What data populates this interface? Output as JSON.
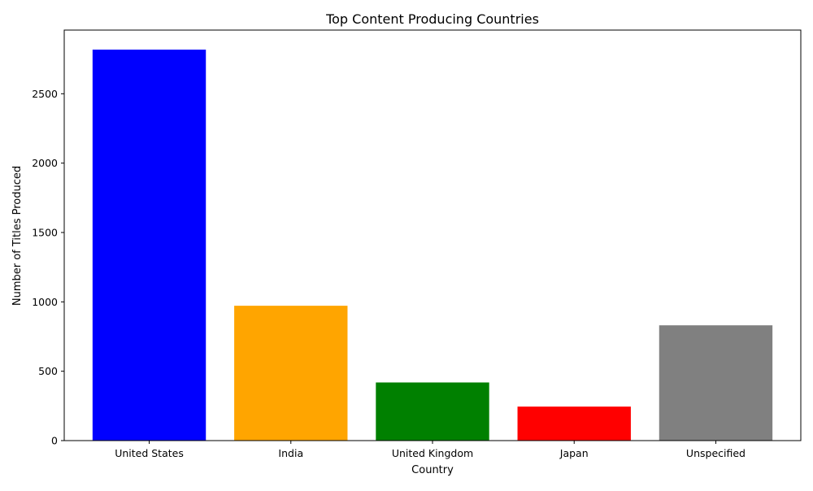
{
  "chart_data": {
    "type": "bar",
    "title": "Top Content Producing Countries",
    "xlabel": "Country",
    "ylabel": "Number of Titles Produced",
    "categories": [
      "United States",
      "India",
      "United Kingdom",
      "Japan",
      "Unspecified"
    ],
    "values": [
      2818,
      972,
      419,
      245,
      831
    ],
    "colors": [
      "#0000ff",
      "#ffa500",
      "#008000",
      "#ff0000",
      "#808080"
    ],
    "yticks": [
      0,
      500,
      1000,
      1500,
      2000,
      2500
    ],
    "ylim": [
      0,
      2959
    ],
    "grid": false,
    "legend": "none"
  }
}
